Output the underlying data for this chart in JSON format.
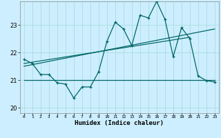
{
  "title": "",
  "xlabel": "Humidex (Indice chaleur)",
  "background_color": "#cceeff",
  "grid_color": "#aadddd",
  "line_color": "#006666",
  "xlim": [
    -0.5,
    23.5
  ],
  "ylim": [
    19.8,
    23.85
  ],
  "yticks": [
    20,
    21,
    22,
    23
  ],
  "xticks": [
    0,
    1,
    2,
    3,
    4,
    5,
    6,
    7,
    8,
    9,
    10,
    11,
    12,
    13,
    14,
    15,
    16,
    17,
    18,
    19,
    20,
    21,
    22,
    23
  ],
  "main_line_x": [
    0,
    1,
    2,
    3,
    4,
    5,
    6,
    7,
    8,
    9,
    10,
    11,
    12,
    13,
    14,
    15,
    16,
    17,
    18,
    19,
    20,
    21,
    22,
    23
  ],
  "main_line_y": [
    21.75,
    21.6,
    21.2,
    21.2,
    20.9,
    20.85,
    20.35,
    20.75,
    20.75,
    21.3,
    22.4,
    23.1,
    22.85,
    22.25,
    23.35,
    23.25,
    23.85,
    23.2,
    21.85,
    22.9,
    22.5,
    21.15,
    20.98,
    20.93
  ],
  "flat_line_x": [
    0,
    9,
    23
  ],
  "flat_line_y": [
    21.0,
    21.0,
    21.0
  ],
  "trend_line1_x": [
    0,
    23
  ],
  "trend_line1_y": [
    21.5,
    22.85
  ],
  "trend_line2_x": [
    0,
    20
  ],
  "trend_line2_y": [
    21.6,
    22.55
  ]
}
